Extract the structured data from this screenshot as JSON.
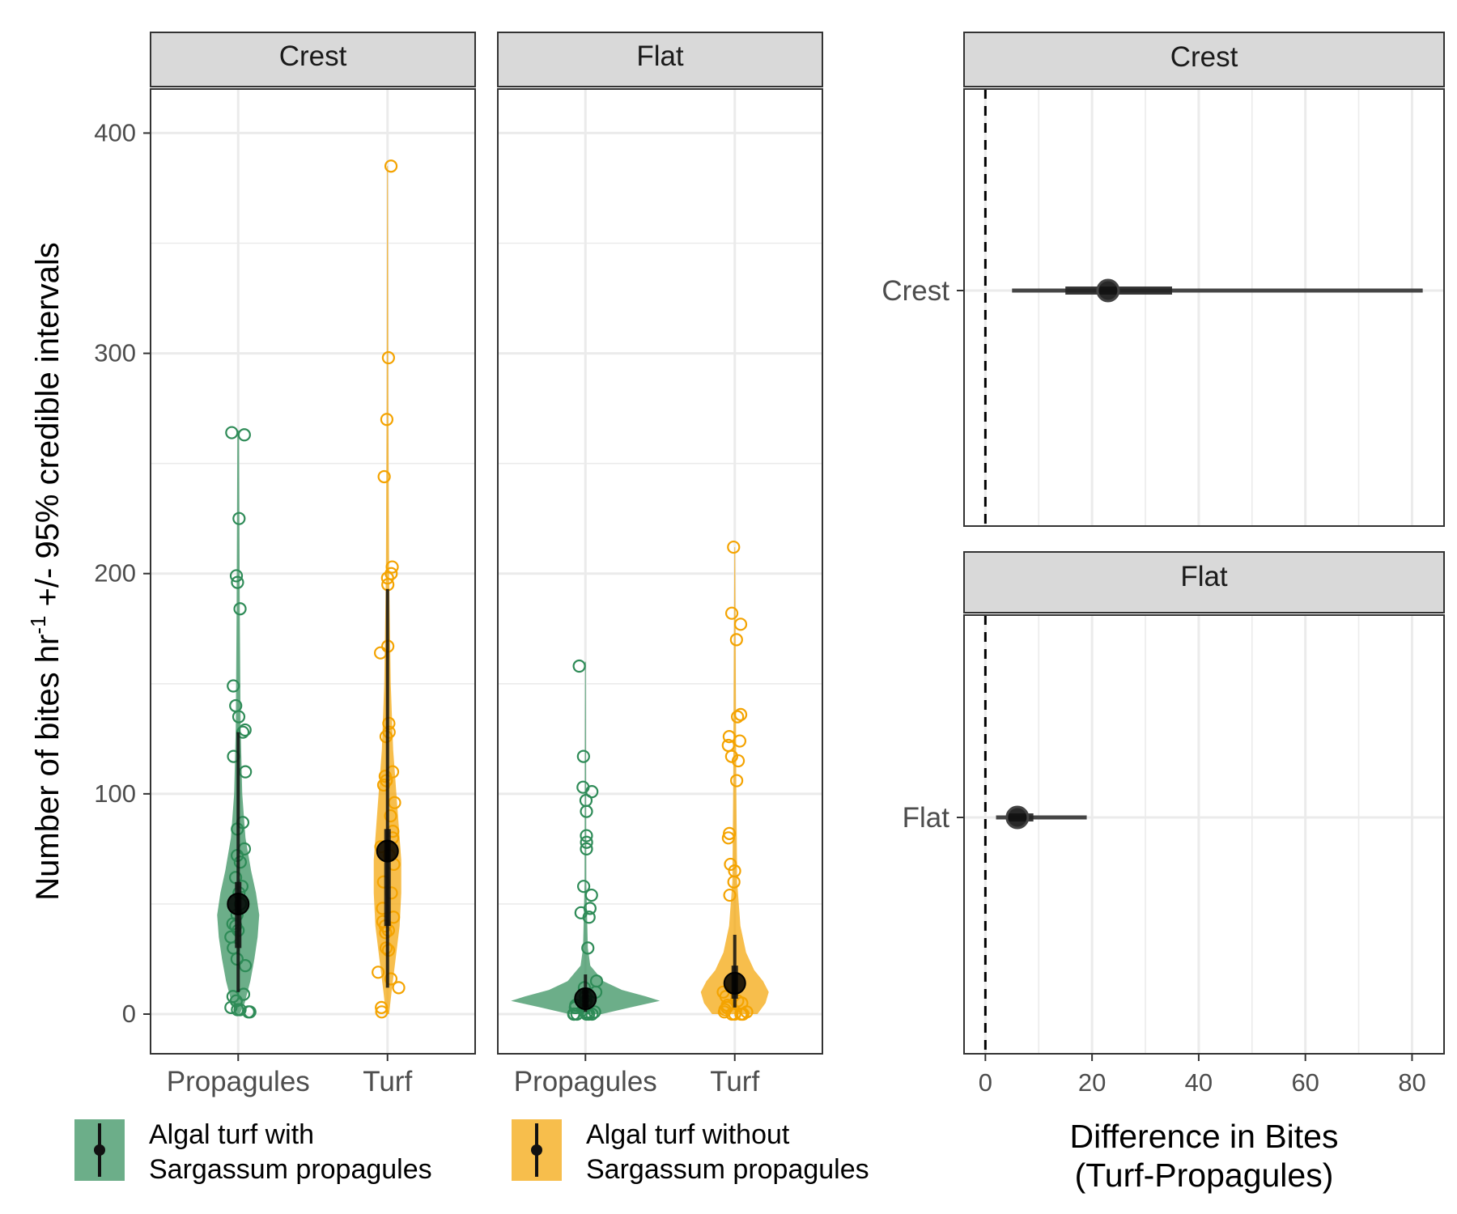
{
  "chart_data": [
    {
      "type": "scatter",
      "subtype": "violin-with-points-and-interval",
      "ylabel_main": "Number of bites hr",
      "ylabel_sup": "-1",
      "ylabel_rest": " +/- 95% credible intervals",
      "ylim": [
        -18,
        420
      ],
      "y_ticks": [
        0,
        100,
        200,
        300,
        400
      ],
      "y_tick_labels": [
        "0",
        "100",
        "200",
        "300",
        "400"
      ],
      "categories": [
        "Propagules",
        "Turf"
      ],
      "grid": true,
      "legend_position": "bottom",
      "legend": [
        {
          "label_line1": "Algal turf with",
          "label_line2": "Sargassum propagules",
          "color": "#2e8b57"
        },
        {
          "label_line1": "Algal turf without",
          "label_line2": "Sargassum propagules",
          "color": "#f4a300"
        }
      ],
      "panels": [
        {
          "strip": "Crest",
          "groups": [
            {
              "category": "Propagules",
              "color": "#2e8b57",
              "violin_color": "#2e8b57",
              "estimate": 50,
              "ci_low": 10,
              "ci_high": 128,
              "ci_inner_low": 30,
              "ci_inner_high": 60,
              "points": [
                263,
                264,
                225,
                199,
                196,
                184,
                149,
                140,
                135,
                129,
                128,
                117,
                110,
                87,
                84,
                75,
                72,
                69,
                62,
                58,
                55,
                50,
                45,
                41,
                40,
                38,
                35,
                30,
                25,
                22,
                9,
                8,
                6,
                3,
                2,
                1,
                1,
                2
              ],
              "violin": [
                [
                  0,
                  2
                ],
                [
                  5,
                  8
                ],
                [
                  15,
                  15
                ],
                [
                  25,
                  20
                ],
                [
                  35,
                  24
                ],
                [
                  45,
                  26
                ],
                [
                  55,
                  22
                ],
                [
                  65,
                  16
                ],
                [
                  80,
                  9
                ],
                [
                  100,
                  5
                ],
                [
                  130,
                  3
                ],
                [
                  180,
                  2
                ],
                [
                  265,
                  1
                ]
              ]
            },
            {
              "category": "Turf",
              "color": "#f4a300",
              "violin_color": "#f4a300",
              "estimate": 74,
              "ci_low": 12,
              "ci_high": 193,
              "ci_inner_low": 40,
              "ci_inner_high": 84,
              "points": [
                385,
                298,
                270,
                244,
                203,
                200,
                198,
                195,
                167,
                164,
                132,
                128,
                126,
                110,
                108,
                106,
                104,
                96,
                90,
                83,
                80,
                76,
                72,
                68,
                60,
                55,
                48,
                44,
                42,
                40,
                38,
                37,
                30,
                29,
                19,
                16,
                12,
                3,
                1
              ],
              "violin": [
                [
                  0,
                  2
                ],
                [
                  10,
                  5
                ],
                [
                  25,
                  10
                ],
                [
                  40,
                  15
                ],
                [
                  55,
                  17
                ],
                [
                  70,
                  17
                ],
                [
                  85,
                  14
                ],
                [
                  100,
                  11
                ],
                [
                  120,
                  7
                ],
                [
                  150,
                  4
                ],
                [
                  200,
                  2
                ],
                [
                  280,
                  1
                ],
                [
                  385,
                  0.5
                ]
              ]
            }
          ]
        },
        {
          "strip": "Flat",
          "groups": [
            {
              "category": "Propagules",
              "color": "#2e8b57",
              "violin_color": "#2e8b57",
              "estimate": 7,
              "ci_low": 1,
              "ci_high": 18,
              "ci_inner_low": 3,
              "ci_inner_high": 12,
              "points": [
                158,
                117,
                103,
                101,
                97,
                92,
                81,
                78,
                75,
                58,
                54,
                48,
                46,
                44,
                30,
                15,
                12,
                10,
                8,
                6,
                5,
                4,
                3,
                2,
                1,
                1,
                0,
                0,
                0,
                0,
                0,
                0
              ],
              "violin": [
                [
                  0,
                  20
                ],
                [
                  3,
                  55
                ],
                [
                  6,
                  92
                ],
                [
                  8,
                  75
                ],
                [
                  11,
                  45
                ],
                [
                  15,
                  22
                ],
                [
                  22,
                  6
                ],
                [
                  30,
                  3
                ],
                [
                  60,
                  1
                ],
                [
                  160,
                  0.5
                ]
              ]
            },
            {
              "category": "Turf",
              "color": "#f4a300",
              "violin_color": "#f4a300",
              "estimate": 14,
              "ci_low": 3,
              "ci_high": 36,
              "ci_inner_low": 7,
              "ci_inner_high": 22,
              "points": [
                212,
                182,
                177,
                170,
                136,
                135,
                126,
                124,
                122,
                117,
                115,
                106,
                82,
                80,
                68,
                65,
                60,
                54,
                10,
                8,
                6,
                5,
                4,
                3,
                2,
                1,
                1,
                0,
                0,
                0,
                0,
                0
              ],
              "violin": [
                [
                  0,
                  28
                ],
                [
                  5,
                  38
                ],
                [
                  10,
                  42
                ],
                [
                  15,
                  35
                ],
                [
                  20,
                  24
                ],
                [
                  28,
                  14
                ],
                [
                  40,
                  7
                ],
                [
                  60,
                  3
                ],
                [
                  100,
                  2
                ],
                [
                  212,
                  0.5
                ]
              ]
            }
          ]
        }
      ]
    },
    {
      "type": "scatter",
      "subtype": "interval-plot",
      "xlabel_line1": "Difference in Bites",
      "xlabel_line2": "(Turf-Propagules)",
      "xlim": [
        -4,
        86
      ],
      "x_ticks": [
        0,
        20,
        40,
        60,
        80
      ],
      "x_tick_labels": [
        "0",
        "20",
        "40",
        "60",
        "80"
      ],
      "reference_line": 0,
      "grid": true,
      "panels": [
        {
          "strip": "Crest",
          "ylabel": "Crest",
          "estimate": 23,
          "ci_low": 5,
          "ci_high": 82,
          "ci_inner_low": 15,
          "ci_inner_high": 35
        },
        {
          "strip": "Flat",
          "ylabel": "Flat",
          "estimate": 6,
          "ci_low": 2,
          "ci_high": 19,
          "ci_inner_low": 4,
          "ci_inner_high": 9
        }
      ]
    }
  ]
}
